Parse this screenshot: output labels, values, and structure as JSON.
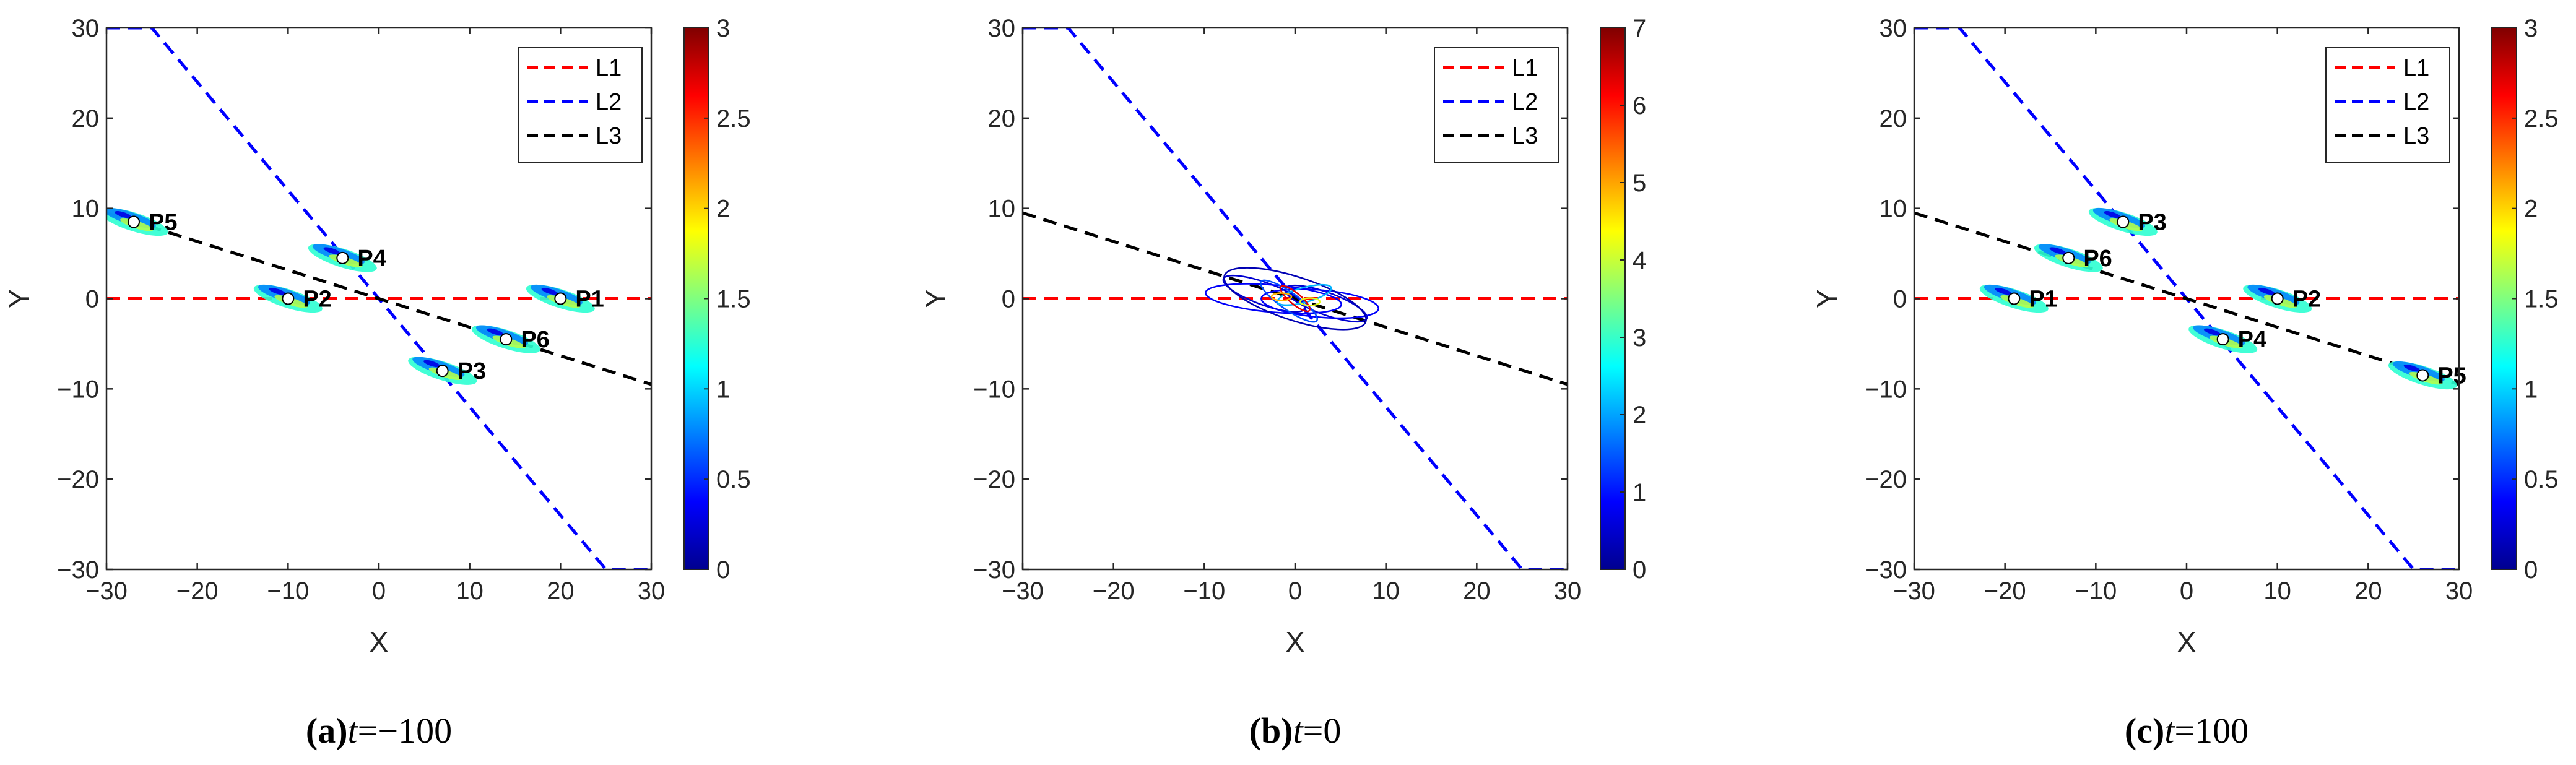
{
  "chart_data": [
    {
      "type": "line",
      "panel_label": "(a)",
      "caption_var": "t",
      "caption_eq": "=",
      "caption_value": "−100",
      "xlabel": "X",
      "ylabel": "Y",
      "xlim": [
        -30,
        30
      ],
      "ylim": [
        -30,
        30
      ],
      "xticks": [
        "−30",
        "−20",
        "−10",
        "0",
        "10",
        "20",
        "30"
      ],
      "yticks": [
        "30",
        "20",
        "10",
        "0",
        "−10",
        "−20",
        "−30"
      ],
      "grid": false,
      "legend_position": "top-right",
      "series": [
        {
          "name": "L1",
          "color": "#ff0000",
          "x": [
            -30,
            30
          ],
          "y": [
            0,
            0
          ]
        },
        {
          "name": "L2",
          "color": "#0000ff",
          "x": [
            -30,
            -25,
            25,
            30
          ],
          "y": [
            30,
            30,
            -30,
            -30
          ]
        },
        {
          "name": "L3",
          "color": "#000000",
          "x": [
            -30,
            30
          ],
          "y": [
            9.5,
            -9.5
          ]
        }
      ],
      "points": [
        {
          "label": "P1",
          "x": 20,
          "y": 0
        },
        {
          "label": "P2",
          "x": -10,
          "y": 0
        },
        {
          "label": "P3",
          "x": 7,
          "y": -8
        },
        {
          "label": "P4",
          "x": -4,
          "y": 4.5
        },
        {
          "label": "P5",
          "x": -27,
          "y": 8.5
        },
        {
          "label": "P6",
          "x": 14,
          "y": -4.5
        }
      ],
      "colorbar": {
        "min": 0,
        "max": 3,
        "ticks": [
          "0",
          "0.5",
          "1",
          "1.5",
          "2",
          "2.5",
          "3"
        ],
        "colormap": "jet"
      }
    },
    {
      "type": "line",
      "panel_label": "(b)",
      "caption_var": "t",
      "caption_eq": "=",
      "caption_value": "0",
      "xlabel": "X",
      "ylabel": "Y",
      "xlim": [
        -30,
        30
      ],
      "ylim": [
        -30,
        30
      ],
      "xticks": [
        "−30",
        "−20",
        "−10",
        "0",
        "10",
        "20",
        "30"
      ],
      "yticks": [
        "30",
        "20",
        "10",
        "0",
        "−10",
        "−20",
        "−30"
      ],
      "grid": false,
      "legend_position": "top-right",
      "series": [
        {
          "name": "L1",
          "color": "#ff0000",
          "x": [
            -30,
            30
          ],
          "y": [
            0,
            0
          ]
        },
        {
          "name": "L2",
          "color": "#0000ff",
          "x": [
            -30,
            -25,
            25,
            30
          ],
          "y": [
            30,
            30,
            -30,
            -30
          ]
        },
        {
          "name": "L3",
          "color": "#000000",
          "x": [
            -30,
            30
          ],
          "y": [
            9.5,
            -9.5
          ]
        }
      ],
      "points": [],
      "contour_cluster": {
        "x": 0,
        "y": 0
      },
      "colorbar": {
        "min": 0,
        "max": 7,
        "ticks": [
          "0",
          "1",
          "2",
          "3",
          "4",
          "5",
          "6",
          "7"
        ],
        "colormap": "jet"
      }
    },
    {
      "type": "line",
      "panel_label": "(c)",
      "caption_var": "t",
      "caption_eq": "=",
      "caption_value": "100",
      "xlabel": "X",
      "ylabel": "Y",
      "xlim": [
        -30,
        30
      ],
      "ylim": [
        -30,
        30
      ],
      "xticks": [
        "−30",
        "−20",
        "−10",
        "0",
        "10",
        "20",
        "30"
      ],
      "yticks": [
        "30",
        "20",
        "10",
        "0",
        "−10",
        "−20",
        "−30"
      ],
      "grid": false,
      "legend_position": "top-right",
      "series": [
        {
          "name": "L1",
          "color": "#ff0000",
          "x": [
            -30,
            30
          ],
          "y": [
            0,
            0
          ]
        },
        {
          "name": "L2",
          "color": "#0000ff",
          "x": [
            -30,
            -25,
            25,
            30
          ],
          "y": [
            30,
            30,
            -30,
            -30
          ]
        },
        {
          "name": "L3",
          "color": "#000000",
          "x": [
            -30,
            30
          ],
          "y": [
            9.5,
            -9.5
          ]
        }
      ],
      "points": [
        {
          "label": "P1",
          "x": -19,
          "y": 0
        },
        {
          "label": "P2",
          "x": 10,
          "y": 0
        },
        {
          "label": "P3",
          "x": -7,
          "y": 8.5
        },
        {
          "label": "P4",
          "x": 4,
          "y": -4.5
        },
        {
          "label": "P5",
          "x": 26,
          "y": -8.5
        },
        {
          "label": "P6",
          "x": -13,
          "y": 4.5
        }
      ],
      "colorbar": {
        "min": 0,
        "max": 3,
        "ticks": [
          "0",
          "0.5",
          "1",
          "1.5",
          "2",
          "2.5",
          "3"
        ],
        "colormap": "jet"
      }
    }
  ]
}
